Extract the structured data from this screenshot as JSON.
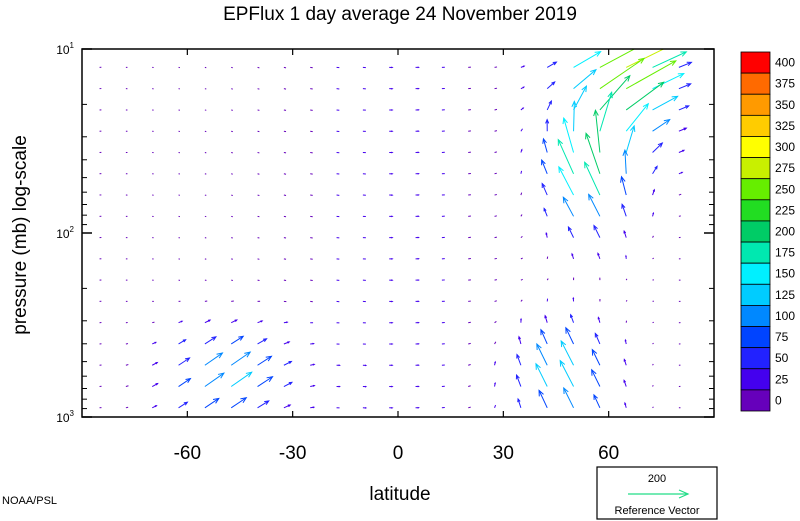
{
  "chart_data": {
    "type": "vector-field",
    "title": "EPFlux  1 day average  24 November 2019",
    "xlabel": "latitude",
    "ylabel": "pressure (mb)  log-scale",
    "xlim": [
      -90,
      90
    ],
    "ylim": [
      1000,
      10
    ],
    "yscale": "log",
    "x_ticks": [
      {
        "value": -60,
        "label": "-60"
      },
      {
        "value": -30,
        "label": "-30"
      },
      {
        "value": 0,
        "label": "0"
      },
      {
        "value": 30,
        "label": "30"
      },
      {
        "value": 60,
        "label": "60"
      }
    ],
    "y_ticks": [
      {
        "value": 10,
        "base": "10",
        "exp": "1"
      },
      {
        "value": 100,
        "base": "10",
        "exp": "2"
      },
      {
        "value": 1000,
        "base": "10",
        "exp": "3"
      }
    ],
    "colorbar": {
      "levels": [
        "400",
        "375",
        "350",
        "325",
        "300",
        "275",
        "250",
        "225",
        "200",
        "175",
        "150",
        "125",
        "100",
        "75",
        "50",
        "25",
        "0"
      ],
      "colors": [
        "#ff0000",
        "#ff6a00",
        "#ff9a00",
        "#ffcc00",
        "#ffff00",
        "#c8f000",
        "#66ee00",
        "#22dd22",
        "#00cc66",
        "#00e8b0",
        "#00f0ff",
        "#00ccff",
        "#0088ff",
        "#0044ff",
        "#2222ff",
        "#4400ee",
        "#6600bb"
      ],
      "placement": "right"
    },
    "reference_vector": {
      "magnitude": "200",
      "label": "Reference Vector",
      "color": "#22dd88"
    },
    "credit": "NOAA/PSL"
  }
}
